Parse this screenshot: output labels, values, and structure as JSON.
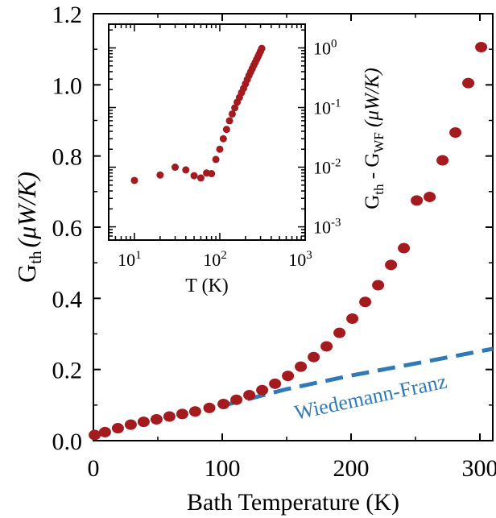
{
  "colors": {
    "marker": "#a31a1f",
    "wf_line": "#2f7ab6",
    "axis": "#000000"
  },
  "chart_data": [
    {
      "type": "scatter",
      "role": "main",
      "xlabel": "Bath Temperature (K)",
      "ylabel": {
        "main": "G",
        "sub": "th",
        "unit": "(μW/K)"
      },
      "xlim": [
        0,
        310
      ],
      "ylim": [
        0,
        1.2
      ],
      "xticks": [
        0,
        100,
        200,
        300
      ],
      "xtick_labels": [
        "0",
        "100",
        "200",
        "300"
      ],
      "yticks": [
        0,
        0.2,
        0.4,
        0.6,
        0.8,
        1.0,
        1.2
      ],
      "ytick_labels": [
        "0.0",
        "0.2",
        "0.4",
        "0.6",
        "0.8",
        "1.0",
        "1.2"
      ],
      "annotation": "Wiedemann-Franz",
      "series": [
        {
          "kind": "scatter",
          "x": [
            1,
            9,
            19,
            29,
            39,
            49,
            59,
            69,
            79,
            90,
            101,
            111,
            121,
            131,
            141,
            151,
            161,
            171,
            181,
            191,
            201,
            211,
            221,
            231,
            241,
            251,
            261,
            271,
            281,
            291,
            301
          ],
          "y": [
            0.016,
            0.024,
            0.035,
            0.045,
            0.053,
            0.06,
            0.068,
            0.075,
            0.082,
            0.092,
            0.103,
            0.115,
            0.128,
            0.142,
            0.16,
            0.182,
            0.208,
            0.235,
            0.265,
            0.303,
            0.343,
            0.39,
            0.437,
            0.494,
            0.541,
            0.675,
            0.685,
            0.788,
            0.866,
            1.005,
            1.106
          ]
        },
        {
          "kind": "line",
          "dashed": true,
          "x": [
            100,
            150,
            200,
            250,
            310
          ],
          "y": [
            0.098,
            0.145,
            0.183,
            0.217,
            0.258
          ]
        }
      ]
    },
    {
      "type": "scatter",
      "role": "inset",
      "xlabel": "T (K)",
      "ylabel": {
        "a": "G",
        "a_sub": "th",
        "mid": " - G",
        "b_sub": "WF",
        "unit": " (μW/K)"
      },
      "x_scale": "log",
      "y_scale": "log",
      "xlim": [
        5,
        1000
      ],
      "ylim": [
        0.0006,
        2.5
      ],
      "xticks": [
        10,
        100,
        1000
      ],
      "xtick_labels": [
        {
          "base": "10",
          "exp": "1"
        },
        {
          "base": "10",
          "exp": "2"
        },
        {
          "base": "10",
          "exp": "3"
        }
      ],
      "yticks": [
        0.001,
        0.01,
        0.1,
        1
      ],
      "ytick_labels": [
        {
          "base": "10",
          "exp": "-3"
        },
        {
          "base": "10",
          "exp": "-2"
        },
        {
          "base": "10",
          "exp": "-1"
        },
        {
          "base": "10",
          "exp": "0"
        }
      ],
      "series": [
        {
          "kind": "scatter",
          "x": [
            10,
            20,
            30,
            40,
            50,
            60,
            70,
            80,
            90,
            100,
            110,
            120,
            130,
            140,
            150,
            160,
            170,
            180,
            190,
            200,
            210,
            220,
            230,
            240,
            250,
            260,
            270,
            280,
            290,
            300,
            310
          ],
          "y": [
            0.006,
            0.0074,
            0.01,
            0.009,
            0.0072,
            0.0066,
            0.008,
            0.0078,
            0.0135,
            0.02,
            0.03,
            0.043,
            0.06,
            0.078,
            0.099,
            0.123,
            0.148,
            0.178,
            0.21,
            0.25,
            0.295,
            0.345,
            0.395,
            0.45,
            0.51,
            0.57,
            0.64,
            0.71,
            0.79,
            0.88,
            0.98
          ]
        }
      ]
    }
  ]
}
